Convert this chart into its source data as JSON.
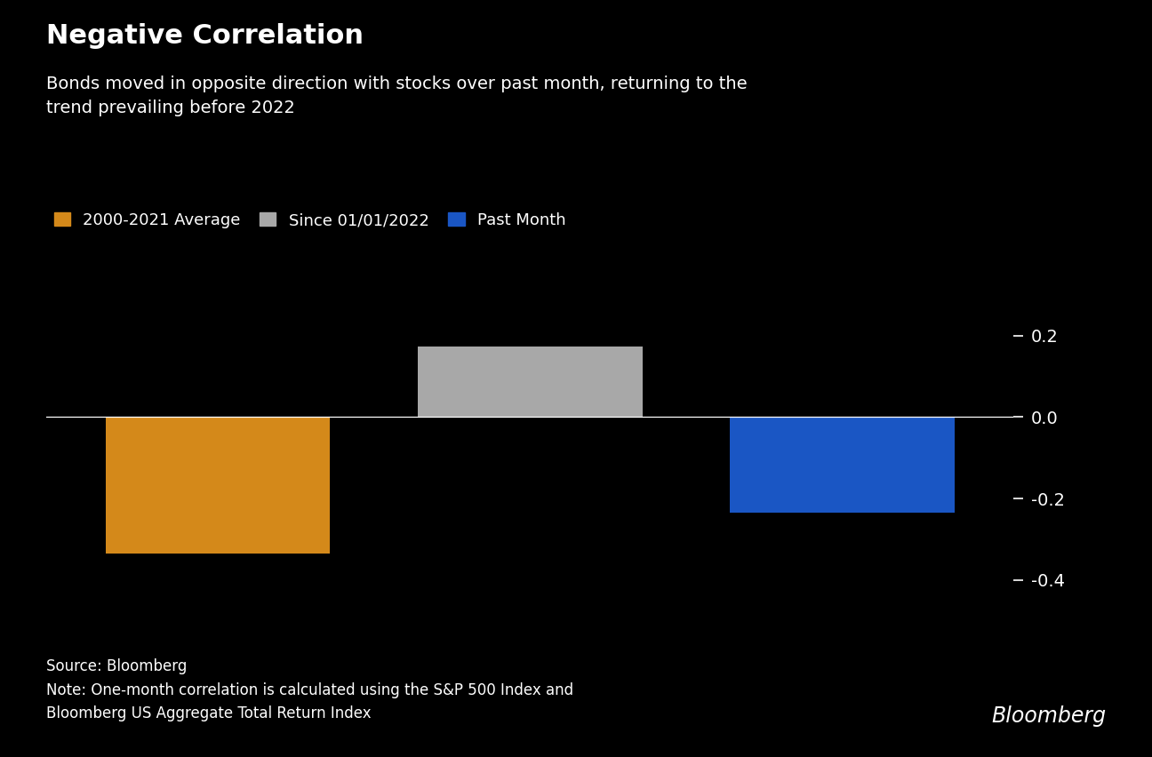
{
  "title": "Negative Correlation",
  "subtitle": "Bonds moved in opposite direction with stocks over past month, returning to the\ntrend prevailing before 2022",
  "categories": [
    "2000-2021 Average",
    "Since 01/01/2022",
    "Past Month"
  ],
  "values": [
    -0.335,
    0.172,
    -0.235
  ],
  "bar_colors": [
    "#D4891A",
    "#A8A8A8",
    "#1A56C4"
  ],
  "legend_labels": [
    "2000-2021 Average",
    "Since 01/01/2022",
    "Past Month"
  ],
  "ylim": [
    -0.5,
    0.28
  ],
  "yticks": [
    -0.4,
    -0.2,
    0.0,
    0.2
  ],
  "background_color": "#000000",
  "text_color": "#FFFFFF",
  "source_text": "Source: Bloomberg\nNote: One-month correlation is calculated using the S&P 500 Index and\nBloomberg US Aggregate Total Return Index",
  "bloomberg_label": "Bloomberg",
  "title_fontsize": 22,
  "subtitle_fontsize": 14,
  "legend_fontsize": 13,
  "axis_fontsize": 14,
  "source_fontsize": 12
}
